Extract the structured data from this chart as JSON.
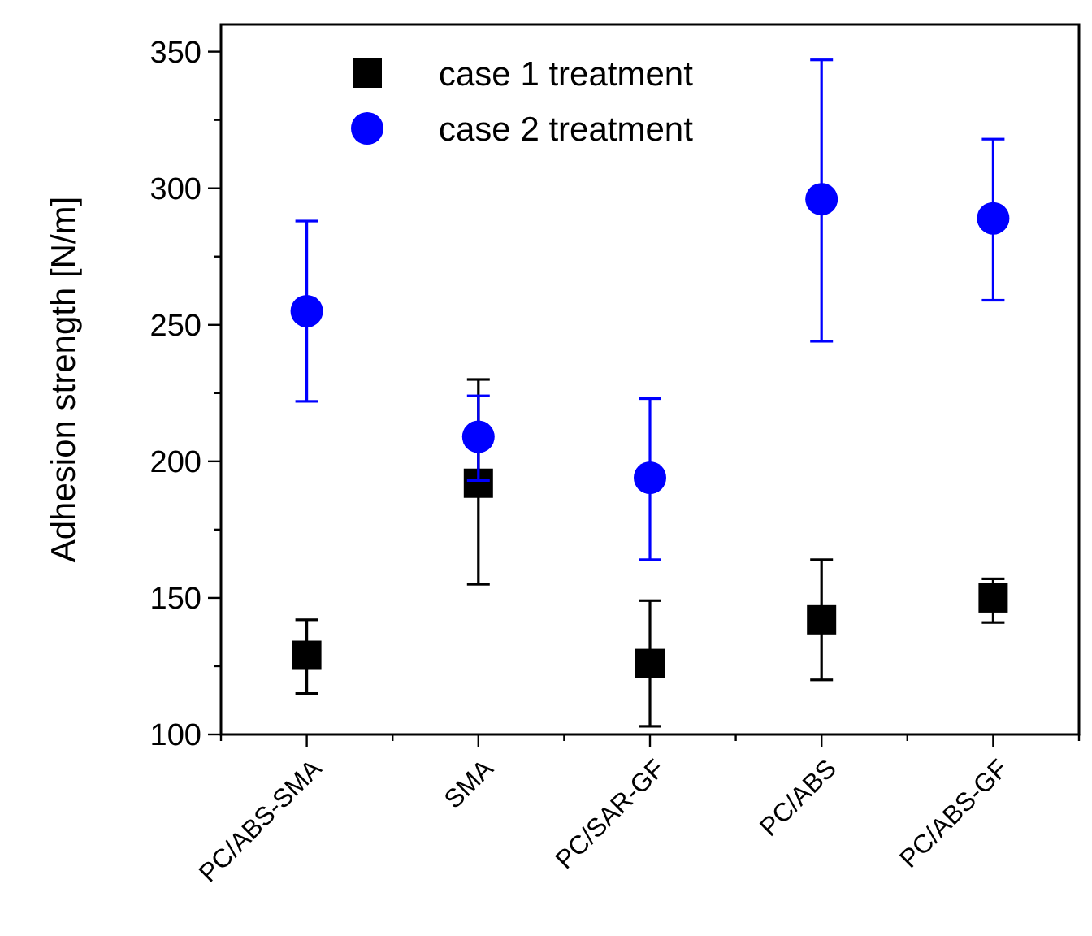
{
  "chart_data": {
    "type": "scatter",
    "ylabel": "Adhesion strength [N/m]",
    "categories": [
      "PC/ABS-SMA",
      "SMA",
      "PC/SAR-GF",
      "PC/ABS",
      "PC/ABS-GF"
    ],
    "series": [
      {
        "name": "case 1 treatment",
        "color": "#000000",
        "marker": "square",
        "values": [
          129,
          192,
          126,
          142,
          150
        ],
        "errors": [
          [
            115,
            142
          ],
          [
            155,
            230
          ],
          [
            103,
            149
          ],
          [
            120,
            164
          ],
          [
            141,
            157
          ]
        ]
      },
      {
        "name": "case 2 treatment",
        "color": "#0000ff",
        "marker": "circle",
        "values": [
          255,
          209,
          194,
          296,
          289
        ],
        "errors": [
          [
            222,
            288
          ],
          [
            193,
            224
          ],
          [
            164,
            223
          ],
          [
            244,
            347
          ],
          [
            259,
            318
          ]
        ]
      }
    ],
    "ylim": [
      100,
      360
    ],
    "yticks": [
      100,
      150,
      200,
      250,
      300,
      350
    ],
    "grid": false,
    "legend": "top left"
  }
}
